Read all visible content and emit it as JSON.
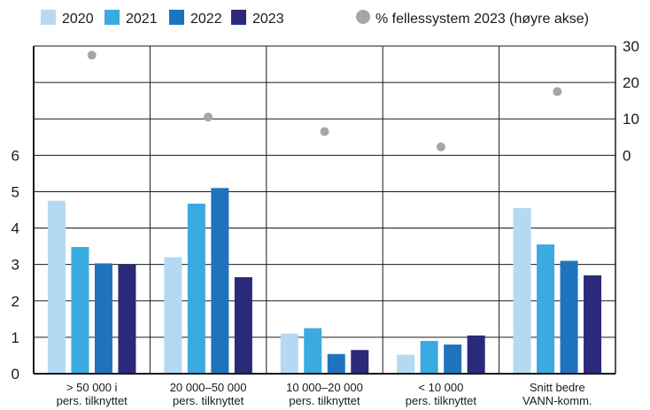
{
  "chart_data": {
    "type": "bar",
    "categories": [
      [
        "> 50 000 i",
        "pers. tilknyttet"
      ],
      [
        "20 000–50 000",
        "pers. tilknyttet"
      ],
      [
        "10 000–20 000",
        "pers. tilknyttet"
      ],
      [
        "< 10 000",
        "pers. tilknyttet"
      ],
      [
        "Snitt bedre",
        "VANN-komm."
      ]
    ],
    "series": [
      {
        "name": "2020",
        "color": "#b5d9f2",
        "values": [
          4.75,
          3.2,
          1.1,
          0.52,
          4.55
        ]
      },
      {
        "name": "2021",
        "color": "#3aaae1",
        "values": [
          3.48,
          4.67,
          1.25,
          0.9,
          3.55
        ]
      },
      {
        "name": "2022",
        "color": "#1f73bd",
        "values": [
          3.03,
          5.1,
          0.54,
          0.8,
          3.1
        ]
      },
      {
        "name": "2023",
        "color": "#2b2979",
        "values": [
          3.0,
          2.65,
          0.65,
          1.05,
          2.7
        ]
      }
    ],
    "secondary_series": {
      "name": "% fellessystem 2023 (høyre akse)",
      "color": "#a6a6a6",
      "axis": "right",
      "values": [
        27.5,
        10.5,
        6.5,
        2.3,
        17.5
      ]
    },
    "y_left": {
      "ticks": [
        "0",
        "1",
        "2",
        "3",
        "4",
        "5",
        "6"
      ],
      "ylim": [
        0,
        9
      ]
    },
    "y_right": {
      "ticks": [
        "0",
        "10",
        "20",
        "30"
      ],
      "ylim": [
        0,
        30
      ]
    },
    "title": "",
    "xlabel": "",
    "ylabel": "",
    "legend_position": "top",
    "grid": true
  }
}
